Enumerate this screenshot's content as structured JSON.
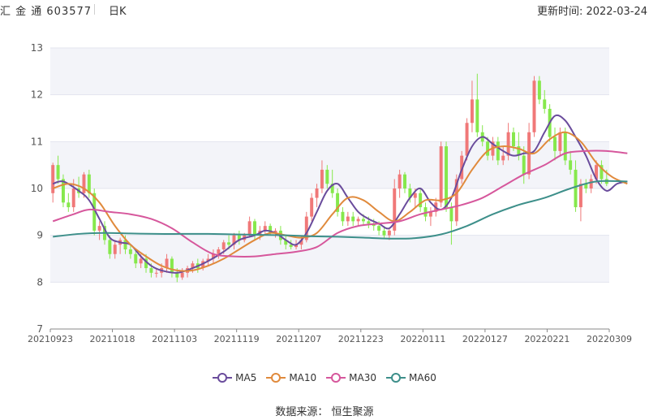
{
  "header": {
    "title": "汇 金 通 603577",
    "period": "日K",
    "update_text": "更新时间: 2022-03-24"
  },
  "footer": {
    "source": "数据来源：  恒生聚源"
  },
  "legend": [
    {
      "name": "MA5",
      "color": "#6a4c9c"
    },
    {
      "name": "MA10",
      "color": "#e08a3c"
    },
    {
      "name": "MA30",
      "color": "#d6579c"
    },
    {
      "name": "MA60",
      "color": "#3d8f8a"
    }
  ],
  "chart_data": {
    "type": "candlestick",
    "ylim": [
      7,
      13
    ],
    "yticks": [
      "7",
      "8",
      "9",
      "10",
      "11",
      "12",
      "13"
    ],
    "xtick_labels": [
      "20210923",
      "20211018",
      "20211103",
      "20211119",
      "20211207",
      "20211223",
      "20220111",
      "20220127",
      "20220221",
      "20220309"
    ],
    "xtick_index": [
      0,
      12,
      24,
      36,
      48,
      60,
      72,
      84,
      96,
      108
    ],
    "up_color": "#f07878",
    "down_color": "#86e84c",
    "grid": true,
    "candles": [
      [
        9.9,
        10.55,
        9.7,
        10.5
      ],
      [
        10.5,
        10.7,
        10.1,
        10.2
      ],
      [
        10.2,
        10.3,
        9.6,
        9.7
      ],
      [
        9.7,
        9.9,
        9.5,
        9.6
      ],
      [
        9.6,
        10.2,
        9.5,
        10.0
      ],
      [
        10.0,
        10.25,
        9.8,
        9.9
      ],
      [
        9.9,
        10.35,
        9.8,
        10.3
      ],
      [
        10.3,
        10.4,
        9.8,
        9.9
      ],
      [
        9.9,
        10.0,
        9.0,
        9.1
      ],
      [
        9.1,
        9.3,
        8.9,
        9.2
      ],
      [
        9.2,
        9.3,
        8.8,
        8.9
      ],
      [
        8.9,
        9.0,
        8.5,
        8.6
      ],
      [
        8.6,
        8.9,
        8.5,
        8.8
      ],
      [
        8.8,
        8.95,
        8.6,
        8.9
      ],
      [
        8.9,
        9.0,
        8.6,
        8.7
      ],
      [
        8.7,
        8.8,
        8.5,
        8.6
      ],
      [
        8.6,
        8.7,
        8.3,
        8.4
      ],
      [
        8.4,
        8.6,
        8.3,
        8.5
      ],
      [
        8.5,
        8.6,
        8.2,
        8.3
      ],
      [
        8.3,
        8.4,
        8.1,
        8.2
      ],
      [
        8.2,
        8.3,
        8.1,
        8.2
      ],
      [
        8.2,
        8.4,
        8.1,
        8.3
      ],
      [
        8.3,
        8.6,
        8.2,
        8.5
      ],
      [
        8.5,
        8.55,
        8.1,
        8.2
      ],
      [
        8.2,
        8.3,
        8.0,
        8.1
      ],
      [
        8.1,
        8.3,
        8.05,
        8.2
      ],
      [
        8.2,
        8.35,
        8.1,
        8.3
      ],
      [
        8.3,
        8.45,
        8.2,
        8.4
      ],
      [
        8.4,
        8.5,
        8.2,
        8.3
      ],
      [
        8.3,
        8.5,
        8.25,
        8.45
      ],
      [
        8.45,
        8.6,
        8.35,
        8.5
      ],
      [
        8.5,
        8.7,
        8.4,
        8.6
      ],
      [
        8.6,
        8.75,
        8.5,
        8.7
      ],
      [
        8.7,
        8.9,
        8.6,
        8.85
      ],
      [
        8.85,
        9.0,
        8.7,
        8.8
      ],
      [
        8.8,
        9.05,
        8.7,
        9.0
      ],
      [
        9.0,
        9.1,
        8.8,
        8.9
      ],
      [
        8.9,
        9.05,
        8.85,
        9.0
      ],
      [
        9.0,
        9.4,
        8.95,
        9.3
      ],
      [
        9.3,
        9.35,
        8.9,
        9.0
      ],
      [
        9.0,
        9.2,
        8.9,
        9.1
      ],
      [
        9.1,
        9.3,
        9.0,
        9.2
      ],
      [
        9.2,
        9.25,
        9.0,
        9.05
      ],
      [
        9.05,
        9.15,
        8.95,
        9.1
      ],
      [
        9.1,
        9.2,
        8.8,
        8.9
      ],
      [
        8.9,
        9.0,
        8.7,
        8.8
      ],
      [
        8.8,
        8.9,
        8.7,
        8.75
      ],
      [
        8.75,
        8.9,
        8.7,
        8.8
      ],
      [
        8.8,
        9.0,
        8.7,
        8.9
      ],
      [
        8.9,
        9.5,
        8.85,
        9.4
      ],
      [
        9.4,
        9.9,
        9.3,
        9.8
      ],
      [
        9.8,
        10.1,
        9.6,
        10.0
      ],
      [
        10.0,
        10.6,
        9.9,
        10.4
      ],
      [
        10.4,
        10.5,
        10.0,
        10.1
      ],
      [
        10.1,
        10.4,
        9.8,
        9.9
      ],
      [
        9.9,
        10.0,
        9.4,
        9.5
      ],
      [
        9.5,
        9.6,
        9.2,
        9.3
      ],
      [
        9.3,
        9.5,
        9.2,
        9.4
      ],
      [
        9.4,
        9.5,
        9.2,
        9.3
      ],
      [
        9.3,
        9.4,
        9.2,
        9.35
      ],
      [
        9.35,
        9.45,
        9.2,
        9.3
      ],
      [
        9.3,
        9.4,
        9.15,
        9.25
      ],
      [
        9.25,
        9.35,
        9.1,
        9.2
      ],
      [
        9.2,
        9.3,
        9.0,
        9.1
      ],
      [
        9.1,
        9.2,
        8.95,
        9.0
      ],
      [
        9.0,
        9.15,
        8.9,
        9.1
      ],
      [
        9.1,
        10.2,
        9.0,
        10.0
      ],
      [
        10.0,
        10.4,
        9.8,
        10.3
      ],
      [
        10.3,
        10.35,
        9.9,
        10.0
      ],
      [
        10.0,
        10.1,
        9.7,
        9.8
      ],
      [
        9.8,
        10.0,
        9.6,
        9.9
      ],
      [
        9.9,
        10.0,
        9.5,
        9.6
      ],
      [
        9.6,
        9.7,
        9.3,
        9.4
      ],
      [
        9.4,
        9.6,
        9.2,
        9.5
      ],
      [
        9.5,
        9.8,
        9.4,
        9.7
      ],
      [
        9.7,
        11.0,
        9.6,
        10.9
      ],
      [
        10.9,
        11.0,
        9.5,
        9.6
      ],
      [
        9.6,
        9.7,
        8.8,
        9.3
      ],
      [
        9.3,
        10.3,
        9.2,
        10.2
      ],
      [
        10.2,
        10.8,
        10.1,
        10.7
      ],
      [
        10.7,
        11.5,
        10.6,
        11.4
      ],
      [
        11.4,
        12.3,
        11.2,
        11.9
      ],
      [
        11.9,
        12.45,
        11.1,
        11.2
      ],
      [
        11.2,
        11.35,
        10.9,
        11.0
      ],
      [
        11.0,
        11.1,
        10.6,
        10.7
      ],
      [
        10.7,
        11.1,
        10.6,
        11.0
      ],
      [
        11.0,
        11.1,
        10.5,
        10.6
      ],
      [
        10.6,
        10.9,
        10.5,
        10.7
      ],
      [
        10.7,
        11.4,
        10.6,
        11.2
      ],
      [
        11.2,
        11.3,
        10.8,
        10.9
      ],
      [
        10.9,
        11.2,
        10.6,
        10.7
      ],
      [
        10.7,
        10.9,
        10.1,
        10.3
      ],
      [
        10.3,
        11.4,
        10.2,
        11.2
      ],
      [
        11.2,
        12.4,
        11.1,
        12.3
      ],
      [
        12.3,
        12.4,
        11.8,
        11.9
      ],
      [
        11.9,
        12.1,
        11.6,
        11.7
      ],
      [
        11.7,
        11.8,
        11.0,
        11.1
      ],
      [
        11.1,
        11.3,
        10.6,
        10.8
      ],
      [
        10.8,
        11.3,
        10.7,
        11.2
      ],
      [
        11.2,
        11.3,
        10.5,
        10.6
      ],
      [
        10.6,
        10.8,
        10.3,
        10.4
      ],
      [
        10.4,
        10.6,
        9.5,
        9.6
      ],
      [
        9.6,
        10.2,
        9.3,
        10.1
      ],
      [
        10.1,
        10.2,
        9.9,
        10.0
      ],
      [
        10.0,
        10.3,
        9.9,
        10.2
      ],
      [
        10.2,
        10.6,
        10.1,
        10.5
      ],
      [
        10.5,
        10.6,
        10.1,
        10.2
      ],
      [
        10.2,
        10.4,
        10.05,
        10.1
      ]
    ],
    "series": [
      {
        "name": "MA5",
        "color": "#6a4c9c",
        "points": [
          [
            0,
            10.1
          ],
          [
            2,
            10.15
          ],
          [
            5,
            9.95
          ],
          [
            7,
            9.75
          ],
          [
            9,
            9.35
          ],
          [
            11,
            8.95
          ],
          [
            13,
            8.85
          ],
          [
            15,
            8.8
          ],
          [
            17,
            8.55
          ],
          [
            19,
            8.35
          ],
          [
            21,
            8.25
          ],
          [
            24,
            8.2
          ],
          [
            27,
            8.3
          ],
          [
            30,
            8.45
          ],
          [
            33,
            8.65
          ],
          [
            36,
            8.9
          ],
          [
            39,
            9.0
          ],
          [
            41,
            9.1
          ],
          [
            43,
            9.05
          ],
          [
            45,
            8.9
          ],
          [
            47,
            8.8
          ],
          [
            49,
            9.05
          ],
          [
            51,
            9.5
          ],
          [
            53,
            9.95
          ],
          [
            55,
            10.1
          ],
          [
            57,
            9.8
          ],
          [
            59,
            9.5
          ],
          [
            61,
            9.35
          ],
          [
            63,
            9.25
          ],
          [
            65,
            9.15
          ],
          [
            67,
            9.45
          ],
          [
            69,
            9.8
          ],
          [
            71,
            10.0
          ],
          [
            73,
            9.7
          ],
          [
            75,
            9.55
          ],
          [
            77,
            9.8
          ],
          [
            79,
            10.4
          ],
          [
            81,
            10.9
          ],
          [
            83,
            11.1
          ],
          [
            85,
            10.95
          ],
          [
            87,
            10.8
          ],
          [
            89,
            10.7
          ],
          [
            91,
            10.75
          ],
          [
            93,
            10.8
          ],
          [
            95,
            11.2
          ],
          [
            97,
            11.55
          ],
          [
            99,
            11.45
          ],
          [
            101,
            11.1
          ],
          [
            103,
            10.7
          ],
          [
            105,
            10.2
          ],
          [
            107,
            9.95
          ],
          [
            109,
            10.1
          ],
          [
            111,
            10.15
          ]
        ]
      },
      {
        "name": "MA10",
        "color": "#e08a3c",
        "points": [
          [
            0,
            10.0
          ],
          [
            3,
            10.1
          ],
          [
            6,
            10.0
          ],
          [
            9,
            9.7
          ],
          [
            12,
            9.2
          ],
          [
            15,
            8.8
          ],
          [
            18,
            8.55
          ],
          [
            21,
            8.35
          ],
          [
            24,
            8.25
          ],
          [
            27,
            8.25
          ],
          [
            30,
            8.35
          ],
          [
            33,
            8.5
          ],
          [
            36,
            8.7
          ],
          [
            39,
            8.9
          ],
          [
            42,
            9.05
          ],
          [
            45,
            9.0
          ],
          [
            48,
            8.95
          ],
          [
            51,
            9.05
          ],
          [
            54,
            9.45
          ],
          [
            57,
            9.8
          ],
          [
            60,
            9.75
          ],
          [
            63,
            9.5
          ],
          [
            66,
            9.3
          ],
          [
            69,
            9.5
          ],
          [
            72,
            9.75
          ],
          [
            75,
            9.75
          ],
          [
            78,
            9.9
          ],
          [
            81,
            10.4
          ],
          [
            84,
            10.8
          ],
          [
            87,
            10.9
          ],
          [
            90,
            10.85
          ],
          [
            93,
            10.75
          ],
          [
            96,
            11.05
          ],
          [
            99,
            11.2
          ],
          [
            102,
            11.0
          ],
          [
            105,
            10.55
          ],
          [
            108,
            10.25
          ],
          [
            111,
            10.1
          ]
        ]
      },
      {
        "name": "MA30",
        "color": "#d6579c",
        "points": [
          [
            0,
            9.3
          ],
          [
            4,
            9.45
          ],
          [
            7,
            9.55
          ],
          [
            11,
            9.5
          ],
          [
            15,
            9.45
          ],
          [
            19,
            9.35
          ],
          [
            23,
            9.15
          ],
          [
            27,
            8.85
          ],
          [
            31,
            8.6
          ],
          [
            35,
            8.55
          ],
          [
            39,
            8.55
          ],
          [
            43,
            8.6
          ],
          [
            47,
            8.65
          ],
          [
            51,
            8.75
          ],
          [
            55,
            9.05
          ],
          [
            59,
            9.2
          ],
          [
            63,
            9.25
          ],
          [
            67,
            9.3
          ],
          [
            71,
            9.45
          ],
          [
            75,
            9.55
          ],
          [
            79,
            9.65
          ],
          [
            83,
            9.8
          ],
          [
            87,
            10.05
          ],
          [
            91,
            10.3
          ],
          [
            95,
            10.5
          ],
          [
            99,
            10.75
          ],
          [
            103,
            10.8
          ],
          [
            107,
            10.8
          ],
          [
            111,
            10.75
          ]
        ]
      },
      {
        "name": "MA60",
        "color": "#3d8f8a",
        "points": [
          [
            0,
            8.97
          ],
          [
            5,
            9.03
          ],
          [
            10,
            9.05
          ],
          [
            15,
            9.04
          ],
          [
            20,
            9.03
          ],
          [
            25,
            9.03
          ],
          [
            30,
            9.03
          ],
          [
            35,
            9.02
          ],
          [
            40,
            9.01
          ],
          [
            45,
            9.0
          ],
          [
            50,
            8.98
          ],
          [
            55,
            8.97
          ],
          [
            60,
            8.95
          ],
          [
            65,
            8.93
          ],
          [
            70,
            8.94
          ],
          [
            75,
            9.02
          ],
          [
            80,
            9.2
          ],
          [
            85,
            9.45
          ],
          [
            90,
            9.65
          ],
          [
            95,
            9.8
          ],
          [
            100,
            10.0
          ],
          [
            105,
            10.15
          ],
          [
            111,
            10.15
          ]
        ]
      }
    ]
  }
}
